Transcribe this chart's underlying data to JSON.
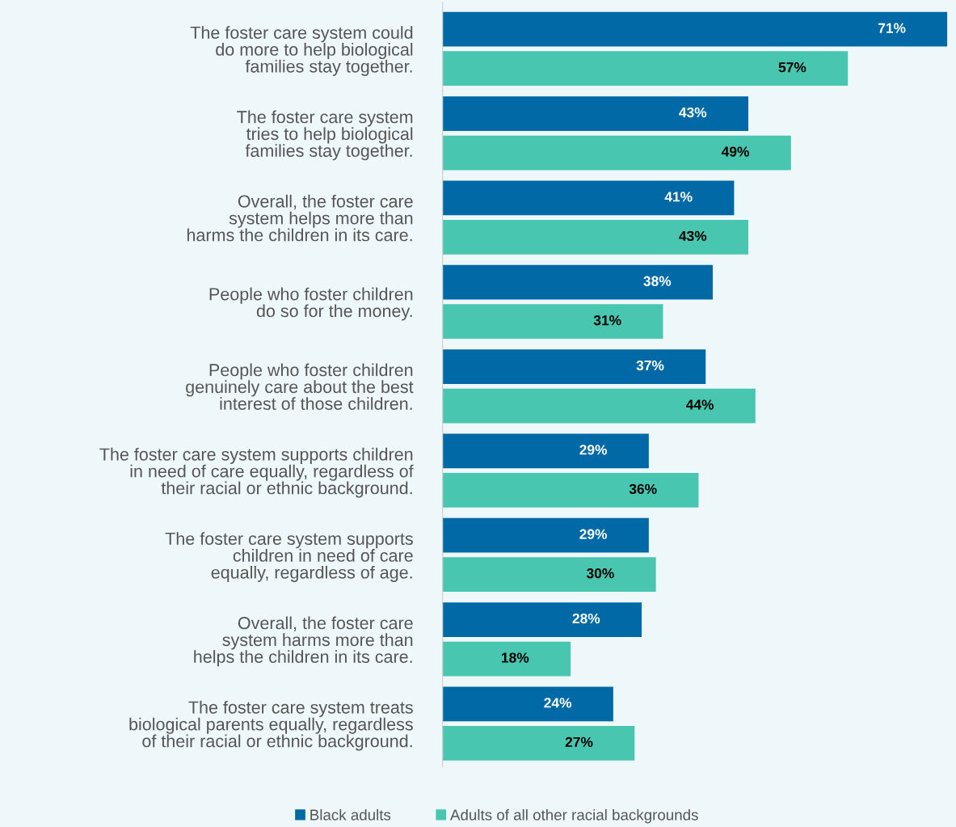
{
  "chart_data": {
    "type": "bar",
    "orientation": "horizontal",
    "legend": "bottom",
    "grid": false,
    "categories": [
      "The foster care system could\ndo more to help biological\nfamilies stay together.",
      "The foster care system\ntries to help biological\nfamilies stay together.",
      "Overall, the foster care\nsystem helps more than\nharms the children in its care.",
      "People who foster children\ndo so for the money.",
      "People who foster children\ngenuinely care about the best\ninterest of those children.",
      "The foster care system supports children\nin need of care equally, regardless of\ntheir racial or ethnic background.",
      "The foster care system supports\nchildren in need of care\nequally, regardless of age.",
      "Overall, the foster care\nsystem harms more than\nhelps the children in its care.",
      "The foster care system treats\nbiological parents equally, regardless\nof their racial or ethnic background."
    ],
    "series": [
      {
        "name": "Black adults",
        "color": "#0069a6",
        "values": [
          71,
          43,
          41,
          38,
          37,
          29,
          29,
          28,
          24
        ],
        "value_labels": [
          "71%",
          "43%",
          "41%",
          "38%",
          "37%",
          "29%",
          "29%",
          "28%",
          "24%"
        ]
      },
      {
        "name": "Adults of all other racial backgrounds",
        "color": "#48c6b0",
        "values": [
          57,
          49,
          43,
          31,
          44,
          36,
          30,
          18,
          27
        ],
        "value_labels": [
          "57%",
          "49%",
          "43%",
          "31%",
          "44%",
          "36%",
          "30%",
          "18%",
          "27%"
        ]
      }
    ]
  }
}
